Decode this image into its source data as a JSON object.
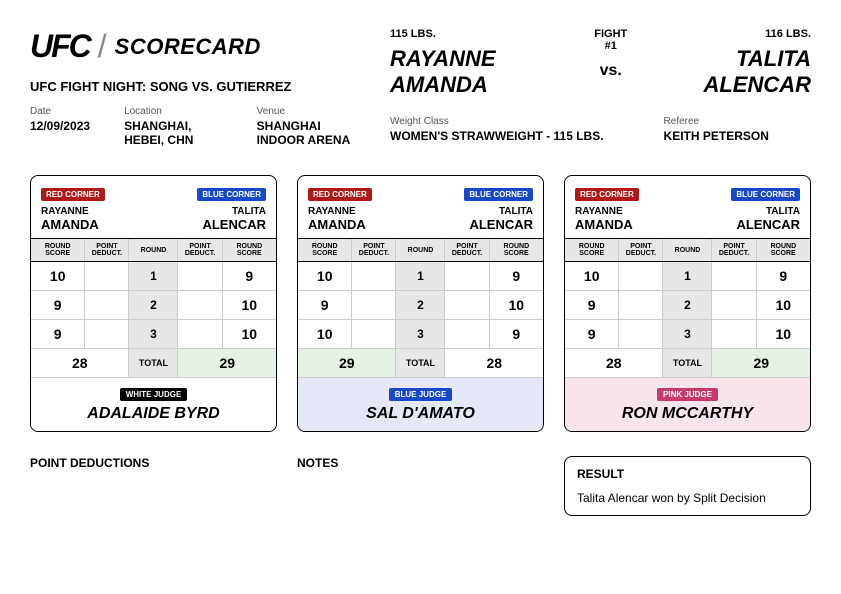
{
  "header": {
    "logo_text": "UFC",
    "scorecard_word": "SCORECARD",
    "event_name": "UFC FIGHT NIGHT: SONG VS. GUTIERREZ",
    "meta": {
      "date_label": "Date",
      "date_value": "12/09/2023",
      "location_label": "Location",
      "location_value": "SHANGHAI, HEBEI, CHN",
      "venue_label": "Venue",
      "venue_value": "SHANGHAI INDOOR ARENA"
    }
  },
  "fight": {
    "red_weight": "115 LBS.",
    "fight_number": "FIGHT #1",
    "blue_weight": "116 LBS.",
    "red_name": "RAYANNE AMANDA",
    "vs": "vs.",
    "blue_name": "TALITA ALENCAR",
    "weight_class_label": "Weight Class",
    "weight_class_value": "WOMEN'S STRAWWEIGHT - 115 LBS.",
    "referee_label": "Referee",
    "referee_value": "KEITH PETERSON"
  },
  "labels": {
    "red_corner": "RED CORNER",
    "blue_corner": "BLUE CORNER",
    "round_score": "ROUND SCORE",
    "point_deduct": "POINT DEDUCT.",
    "round": "ROUND",
    "total": "TOTAL"
  },
  "fighters": {
    "red_first": "RAYANNE",
    "red_last": "AMANDA",
    "blue_first": "TALITA",
    "blue_last": "ALENCAR"
  },
  "cards": [
    {
      "judge_tag": "WHITE JUDGE",
      "judge_tag_color": "white-t",
      "band_color": "white",
      "judge_name": "ADALAIDE BYRD",
      "rounds": [
        {
          "rs": "10",
          "rd": "",
          "rn": "1",
          "bd": "",
          "bs": "9"
        },
        {
          "rs": "9",
          "rd": "",
          "rn": "2",
          "bd": "",
          "bs": "10"
        },
        {
          "rs": "9",
          "rd": "",
          "rn": "3",
          "bd": "",
          "bs": "10"
        }
      ],
      "total_red": "28",
      "total_blue": "29",
      "winner": "blue"
    },
    {
      "judge_tag": "BLUE JUDGE",
      "judge_tag_color": "blue-t",
      "band_color": "blue",
      "judge_name": "SAL D'AMATO",
      "rounds": [
        {
          "rs": "10",
          "rd": "",
          "rn": "1",
          "bd": "",
          "bs": "9"
        },
        {
          "rs": "9",
          "rd": "",
          "rn": "2",
          "bd": "",
          "bs": "10"
        },
        {
          "rs": "10",
          "rd": "",
          "rn": "3",
          "bd": "",
          "bs": "9"
        }
      ],
      "total_red": "29",
      "total_blue": "28",
      "winner": "red"
    },
    {
      "judge_tag": "PINK JUDGE",
      "judge_tag_color": "pink-t",
      "band_color": "pink",
      "judge_name": "RON MCCARTHY",
      "rounds": [
        {
          "rs": "10",
          "rd": "",
          "rn": "1",
          "bd": "",
          "bs": "9"
        },
        {
          "rs": "9",
          "rd": "",
          "rn": "2",
          "bd": "",
          "bs": "10"
        },
        {
          "rs": "9",
          "rd": "",
          "rn": "3",
          "bd": "",
          "bs": "10"
        }
      ],
      "total_red": "28",
      "total_blue": "29",
      "winner": "blue"
    }
  ],
  "bottom": {
    "point_deductions_title": "POINT DEDUCTIONS",
    "notes_title": "NOTES",
    "result_title": "RESULT",
    "result_text": "Talita Alencar won by Split Decision"
  },
  "colors": {
    "red": "#b01818",
    "blue": "#1848c8",
    "pink": "#c83a6a",
    "header_gray": "#e7e7e7",
    "winner_green": "#e5f2e5",
    "band_blue": "#e5e9f7",
    "band_pink": "#f7e5ea"
  }
}
